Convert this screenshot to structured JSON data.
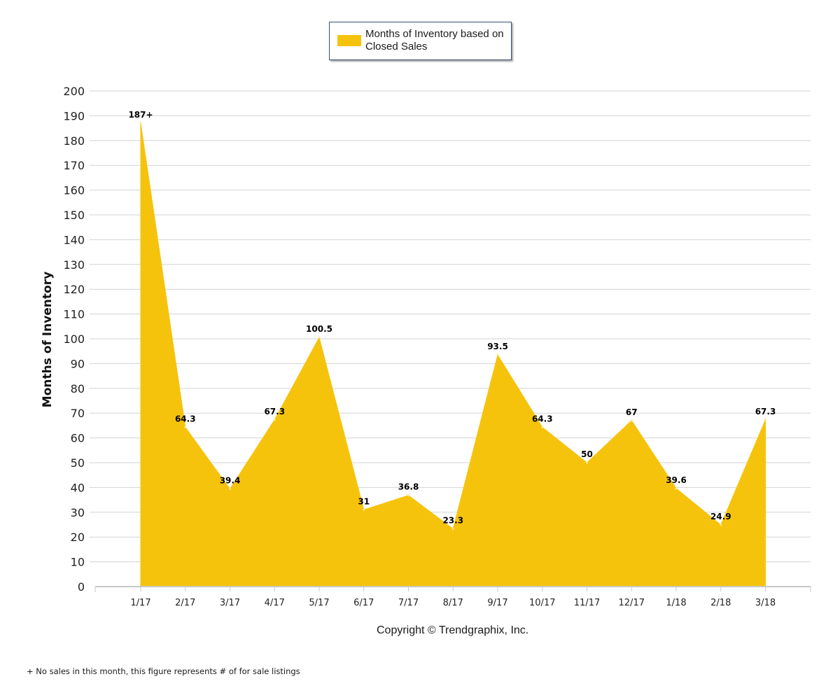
{
  "legend": {
    "label": "Months of Inventory based on Closed Sales",
    "color": "#f6c30c"
  },
  "footer": {
    "copyright": "Copyright © Trendgraphix, Inc.",
    "footnote": "+ No sales in this month, this figure represents # of for sale listings"
  },
  "chart_data": {
    "type": "area",
    "title": "",
    "xlabel": "",
    "ylabel": "Months of Inventory",
    "ylim": [
      0,
      200
    ],
    "ytick_step": 10,
    "grid": true,
    "legend_position": "top-center",
    "categories": [
      "1/17",
      "2/17",
      "3/17",
      "4/17",
      "5/17",
      "6/17",
      "7/17",
      "8/17",
      "9/17",
      "10/17",
      "11/17",
      "12/17",
      "1/18",
      "2/18",
      "3/18"
    ],
    "series": [
      {
        "name": "Months of Inventory based on Closed Sales",
        "color": "#f6c30c",
        "values": [
          187,
          64.3,
          39.4,
          67.3,
          100.5,
          31,
          36.8,
          23.3,
          93.5,
          64.3,
          50,
          67,
          39.6,
          24.9,
          67.3
        ],
        "labels": [
          "187+",
          "64.3",
          "39.4",
          "67.3",
          "100.5",
          "31",
          "36.8",
          "23.3",
          "93.5",
          "64.3",
          "50",
          "67",
          "39.6",
          "24.9",
          "67.3"
        ]
      }
    ]
  }
}
